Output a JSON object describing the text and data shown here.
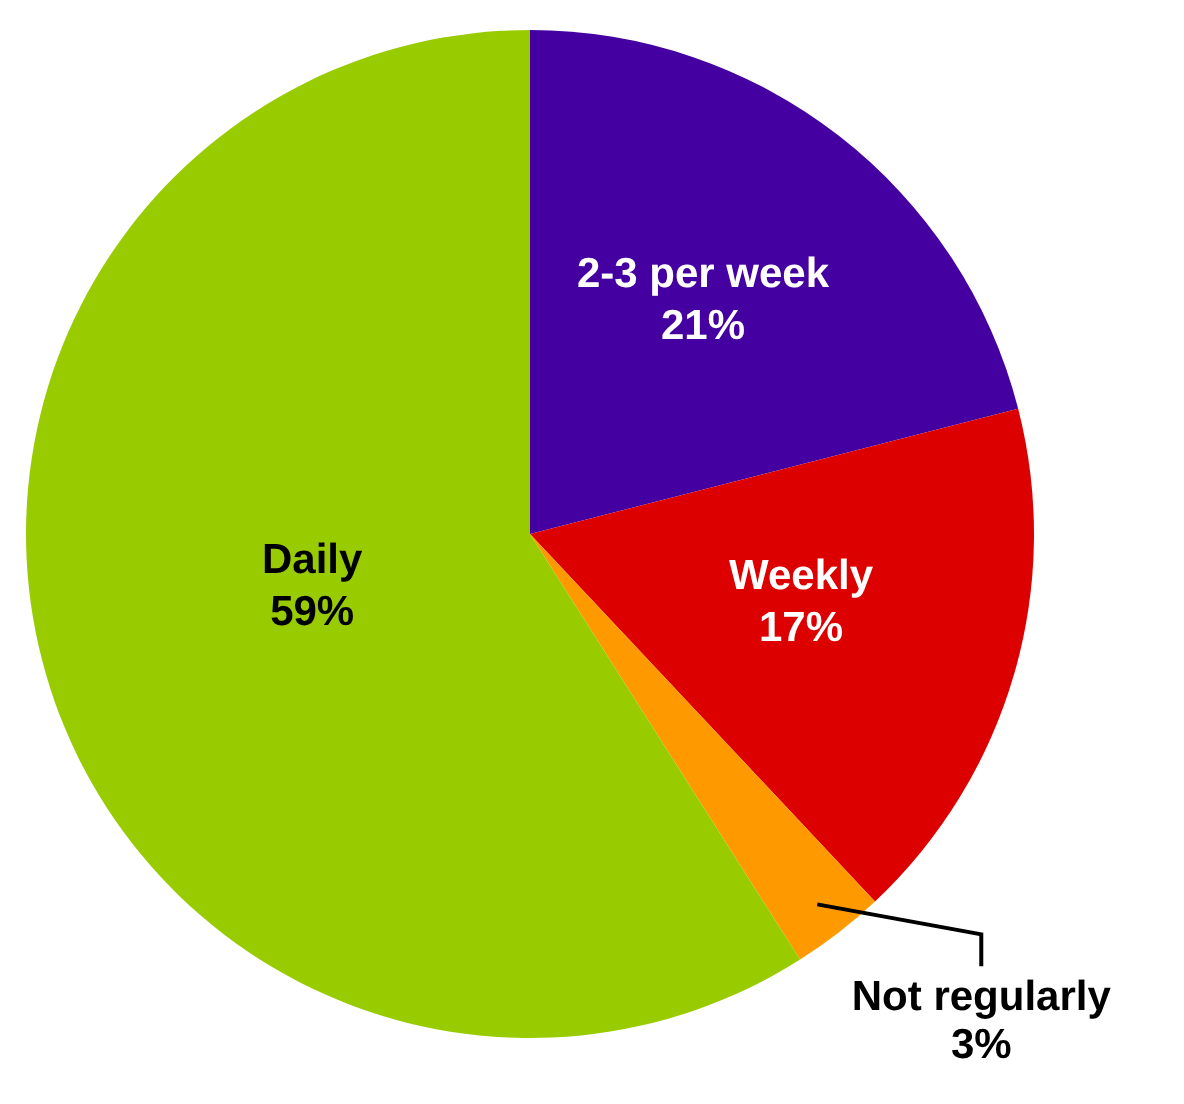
{
  "chart_data": {
    "type": "pie",
    "categories": [
      "2-3 per week",
      "Weekly",
      "Not regularly",
      "Daily"
    ],
    "values": [
      21,
      17,
      3,
      59
    ],
    "value_labels": [
      "21%",
      "17%",
      "3%",
      "59%"
    ],
    "colors": [
      "#4400a0",
      "#dd0000",
      "#ff9900",
      "#99cc00"
    ],
    "legend": false
  }
}
